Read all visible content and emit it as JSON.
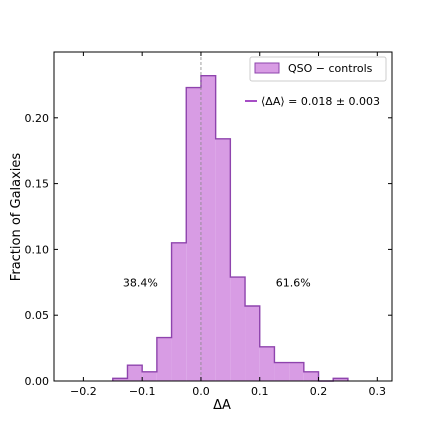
{
  "chart_data": {
    "type": "bar",
    "histogram": true,
    "title": "",
    "xlabel": "ΔA",
    "ylabel": "Fraction of Galaxies",
    "xlim": [
      -0.25,
      0.325
    ],
    "ylim": [
      0,
      0.25
    ],
    "bin_width": 0.025,
    "bins": [
      {
        "x0": -0.15,
        "x1": -0.125,
        "value": 0.002
      },
      {
        "x0": -0.125,
        "x1": -0.1,
        "value": 0.012
      },
      {
        "x0": -0.1,
        "x1": -0.075,
        "value": 0.007
      },
      {
        "x0": -0.075,
        "x1": -0.05,
        "value": 0.033
      },
      {
        "x0": -0.05,
        "x1": -0.025,
        "value": 0.105
      },
      {
        "x0": -0.025,
        "x1": 0.0,
        "value": 0.223
      },
      {
        "x0": 0.0,
        "x1": 0.025,
        "value": 0.232
      },
      {
        "x0": 0.025,
        "x1": 0.05,
        "value": 0.184
      },
      {
        "x0": 0.05,
        "x1": 0.075,
        "value": 0.079
      },
      {
        "x0": 0.075,
        "x1": 0.1,
        "value": 0.057
      },
      {
        "x0": 0.1,
        "x1": 0.125,
        "value": 0.026
      },
      {
        "x0": 0.125,
        "x1": 0.15,
        "value": 0.014
      },
      {
        "x0": 0.15,
        "x1": 0.175,
        "value": 0.014
      },
      {
        "x0": 0.175,
        "x1": 0.2,
        "value": 0.007
      },
      {
        "x0": 0.2,
        "x1": 0.225,
        "value": 0.0
      },
      {
        "x0": 0.225,
        "x1": 0.25,
        "value": 0.002
      }
    ],
    "x_ticks": [
      -0.2,
      -0.1,
      0.0,
      0.1,
      0.2,
      0.3
    ],
    "x_tick_labels": [
      "−0.2",
      "−0.1",
      "0.0",
      "0.1",
      "0.2",
      "0.3"
    ],
    "y_ticks": [
      0.0,
      0.05,
      0.1,
      0.15,
      0.2
    ],
    "y_tick_labels": [
      "0.00",
      "0.05",
      "0.10",
      "0.15",
      "0.20"
    ],
    "reference_line_x": 0.0,
    "annotations": [
      {
        "text": "38.4%",
        "x": -0.103,
        "y": 0.075
      },
      {
        "text": "61.6%",
        "x": 0.157,
        "y": 0.075
      }
    ],
    "legend": {
      "placement": "top-right",
      "entries": [
        {
          "label": "QSO − controls",
          "kind": "patch"
        },
        {
          "label": "⟨ΔA⟩ = 0.018 ± 0.003",
          "kind": "line"
        }
      ]
    },
    "colors": {
      "fill": "#d89ce4",
      "edge": "#8e44ad",
      "line": "#a64dc5",
      "reference": "#888888"
    },
    "grid": false
  }
}
